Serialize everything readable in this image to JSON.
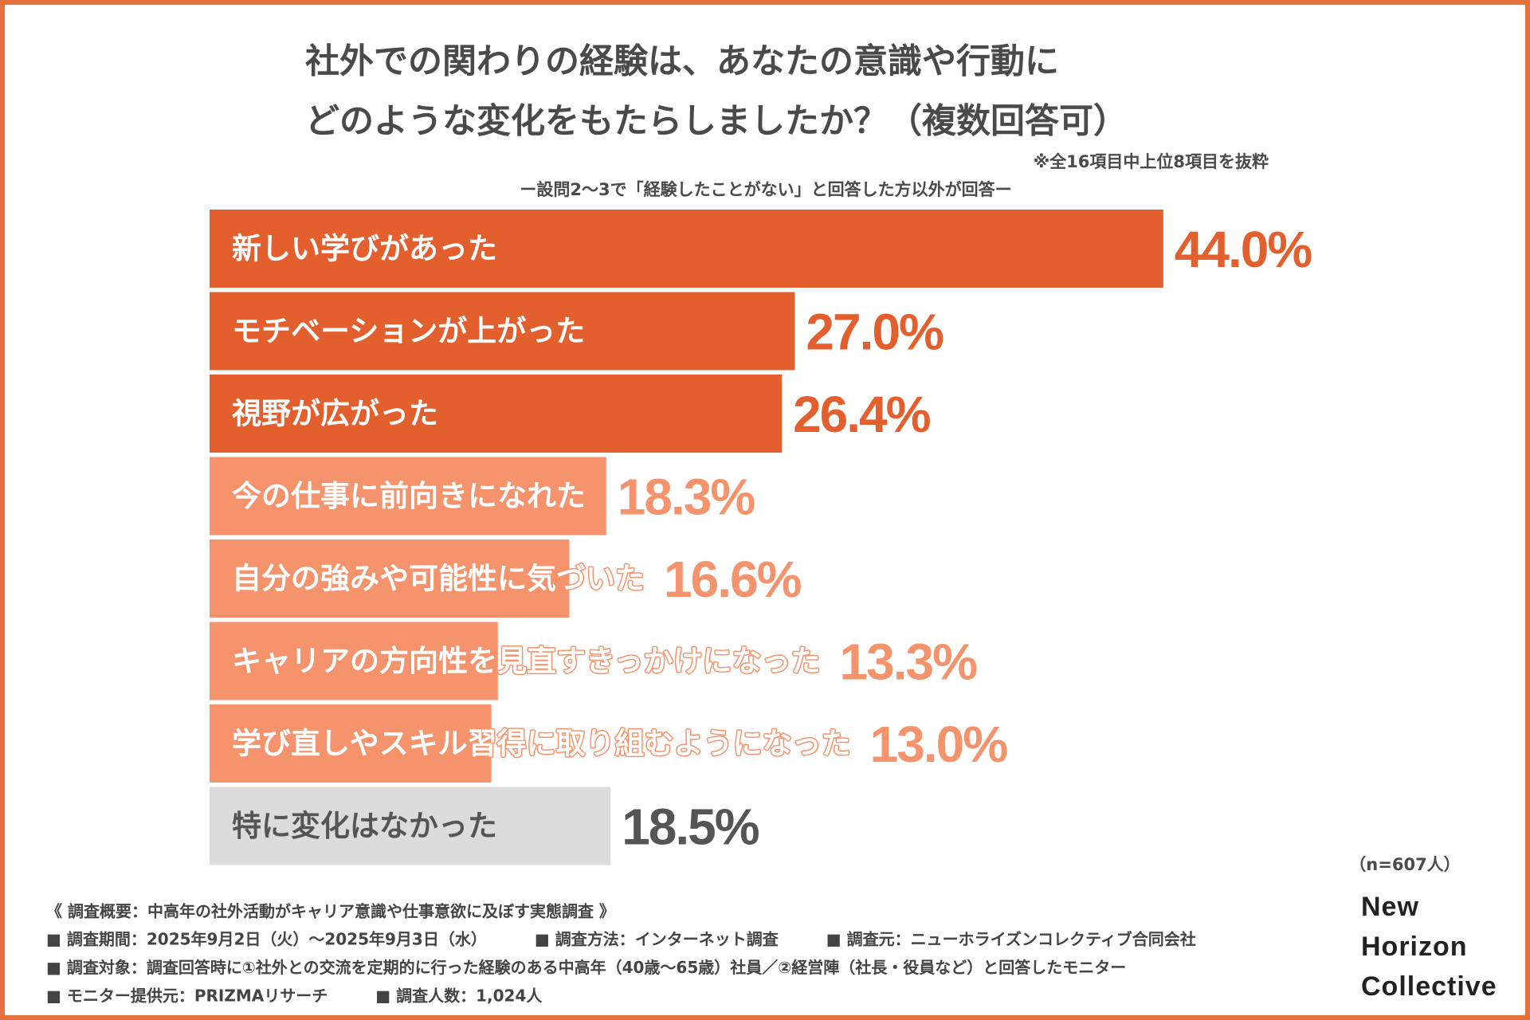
{
  "chart_data": {
    "type": "hbar",
    "title": [
      "社外での関わりの経験は、あなたの意識や行動に",
      "どのような変化をもたらしましたか？（複数回答可）"
    ],
    "note": "※全16項目中上位8項目を抜粋",
    "subtitle": "ー設問2〜3で「経験したことがない」と回答した方以外が回答ー",
    "categories": [
      "新しい学びがあった",
      "モチベーションが上がった",
      "視野が広がった",
      "今の仕事に前向きになれた",
      "自分の強みや可能性に気づいた",
      "キャリアの方向性を見直すきっかけになった",
      "学び直しやスキル習得に取り組むようになった",
      "特に変化はなかった"
    ],
    "values": [
      44.0,
      27.0,
      26.4,
      18.3,
      16.6,
      13.3,
      13.0,
      18.5
    ],
    "value_labels": [
      "44.0%",
      "27.0%",
      "26.4%",
      "18.3%",
      "16.6%",
      "13.3%",
      "13.0%",
      "18.5%"
    ],
    "colors": [
      "#e35f2e",
      "#e35f2e",
      "#e35f2e",
      "#f4936c",
      "#f4936c",
      "#f4936c",
      "#f4936c",
      "#dcdcdc"
    ],
    "value_label_colors": [
      "#e35f2e",
      "#e35f2e",
      "#e35f2e",
      "#f4936c",
      "#f4936c",
      "#f4936c",
      "#f4936c",
      "#555555"
    ],
    "text_colors": [
      "#ffffff",
      "#ffffff",
      "#ffffff",
      "#ffffff",
      "#ffffff",
      "#ffffff",
      "#ffffff",
      "#555555"
    ],
    "sample": "（n=607人）"
  },
  "logo": [
    "New",
    "Horizon",
    "Collective"
  ],
  "footer": {
    "title": "《 調査概要：中高年の社外活動がキャリア意識や仕事意欲に及ぼす実態調査 》",
    "rows": [
      [
        "■ 調査期間：2025年9月2日（火）〜2025年9月3日（水）",
        "■ 調査方法：インターネット調査",
        "■ 調査元：ニューホライズンコレクティブ合同会社"
      ],
      [
        "■ 調査対象：調査回答時に①社外との交流を定期的に行った経験のある中高年（40歳〜65歳）社員／②経営陣（社長・役員など）と回答したモニター"
      ],
      [
        "■ モニター提供元：PRIZMAリサーチ",
        "■ 調査人数：1,024人"
      ]
    ]
  }
}
